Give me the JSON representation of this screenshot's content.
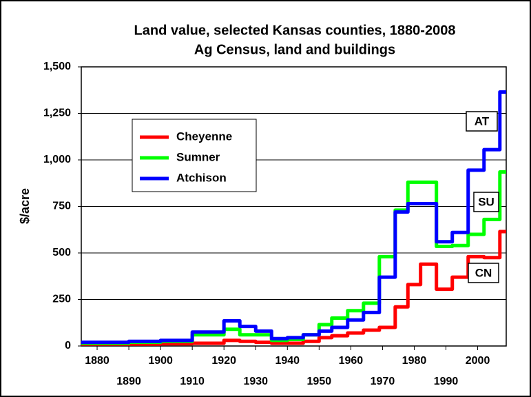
{
  "chart_data": {
    "type": "line",
    "title": "Land value, selected Kansas counties, 1880-2008",
    "subtitle": "Ag Census, land and buildings",
    "y_label": "$/acre",
    "x": [
      1880,
      1890,
      1900,
      1910,
      1920,
      1925,
      1930,
      1935,
      1940,
      1945,
      1950,
      1954,
      1959,
      1964,
      1969,
      1974,
      1978,
      1982,
      1987,
      1992,
      1997,
      2002,
      2007
    ],
    "series": [
      {
        "name": "Cheyenne",
        "color": "#ff0000",
        "values": [
          10,
          10,
          12,
          15,
          30,
          25,
          20,
          15,
          15,
          25,
          45,
          55,
          70,
          85,
          100,
          210,
          330,
          440,
          305,
          370,
          480,
          475,
          615
        ]
      },
      {
        "name": "Sumner",
        "color": "#00ff00",
        "values": [
          15,
          20,
          25,
          60,
          90,
          60,
          60,
          30,
          35,
          60,
          115,
          150,
          190,
          230,
          480,
          730,
          880,
          880,
          535,
          540,
          600,
          680,
          935
        ]
      },
      {
        "name": "Atchison",
        "color": "#0000ff",
        "values": [
          20,
          25,
          30,
          75,
          135,
          105,
          80,
          40,
          45,
          60,
          80,
          100,
          140,
          180,
          370,
          720,
          765,
          765,
          560,
          610,
          945,
          1055,
          1365
        ]
      }
    ],
    "annotations": [
      "AT",
      "SU",
      "CN"
    ],
    "xlim": [
      1875,
      2009
    ],
    "xticks": [
      1880,
      1890,
      1900,
      1910,
      1920,
      1930,
      1940,
      1950,
      1960,
      1970,
      1980,
      1990,
      2000
    ],
    "ylim": [
      0,
      1500
    ],
    "yticks": [
      0,
      {
        "value": 250,
        "label": "250"
      },
      500,
      750,
      {
        "value": 1000,
        "label": "1,000"
      },
      {
        "value": 1250,
        "label": "1,250"
      },
      {
        "value": 1500,
        "label": "1,500"
      }
    ],
    "grid": true,
    "line_style": "step"
  }
}
